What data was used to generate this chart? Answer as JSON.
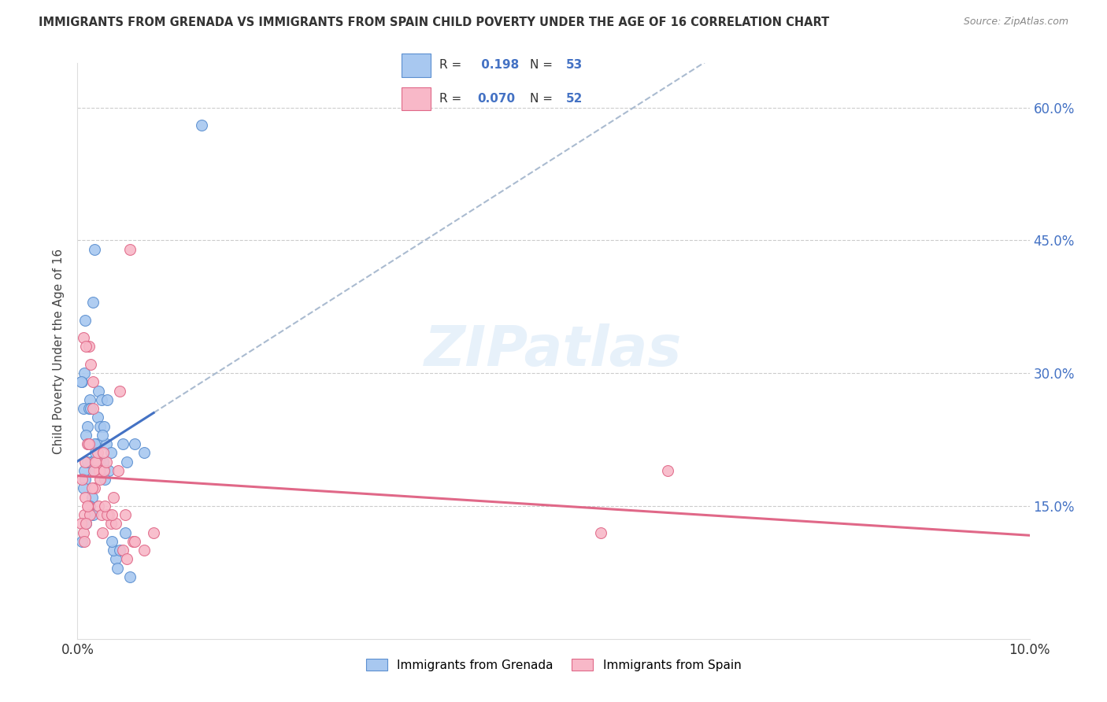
{
  "title": "IMMIGRANTS FROM GRENADA VS IMMIGRANTS FROM SPAIN CHILD POVERTY UNDER THE AGE OF 16 CORRELATION CHART",
  "source": "Source: ZipAtlas.com",
  "ylabel": "Child Poverty Under the Age of 16",
  "legend_labels": [
    "Immigrants from Grenada",
    "Immigrants from Spain"
  ],
  "R_grenada": 0.198,
  "N_grenada": 53,
  "R_spain": 0.07,
  "N_spain": 52,
  "color_grenada_fill": "#A8C8F0",
  "color_grenada_edge": "#5B8FD0",
  "color_spain_fill": "#F8B8C8",
  "color_spain_edge": "#E06888",
  "color_grenada_line": "#4472C4",
  "color_spain_line": "#E06888",
  "color_dashed": "#AABBD0",
  "xmin": 0.0,
  "xmax": 0.1,
  "ymin": 0.0,
  "ymax": 0.65,
  "yticks": [
    0.15,
    0.3,
    0.45,
    0.6
  ],
  "ytick_labels": [
    "15.0%",
    "30.0%",
    "45.0%",
    "60.0%"
  ],
  "xticks": [
    0.0,
    0.1
  ],
  "xtick_labels": [
    "0.0%",
    "10.0%"
  ],
  "grenada_x": [
    0.0013,
    0.0008,
    0.0016,
    0.0005,
    0.0018,
    0.0007,
    0.0022,
    0.001,
    0.0006,
    0.0014,
    0.002,
    0.0009,
    0.0025,
    0.0012,
    0.0004,
    0.0017,
    0.0011,
    0.0023,
    0.0008,
    0.0015,
    0.0019,
    0.0006,
    0.0021,
    0.0013,
    0.0007,
    0.0016,
    0.001,
    0.0024,
    0.0005,
    0.0018,
    0.0028,
    0.0014,
    0.0031,
    0.0009,
    0.0022,
    0.003,
    0.0026,
    0.0035,
    0.0027,
    0.0033,
    0.004,
    0.0038,
    0.0029,
    0.0036,
    0.0042,
    0.005,
    0.0055,
    0.0048,
    0.0052,
    0.0044,
    0.006,
    0.007,
    0.013
  ],
  "grenada_y": [
    0.27,
    0.36,
    0.38,
    0.29,
    0.44,
    0.3,
    0.28,
    0.24,
    0.26,
    0.2,
    0.22,
    0.23,
    0.27,
    0.26,
    0.29,
    0.19,
    0.22,
    0.2,
    0.18,
    0.16,
    0.21,
    0.17,
    0.25,
    0.15,
    0.19,
    0.14,
    0.2,
    0.24,
    0.11,
    0.22,
    0.24,
    0.26,
    0.27,
    0.13,
    0.2,
    0.22,
    0.23,
    0.21,
    0.2,
    0.19,
    0.09,
    0.1,
    0.18,
    0.11,
    0.08,
    0.12,
    0.07,
    0.22,
    0.2,
    0.1,
    0.22,
    0.21,
    0.58
  ],
  "spain_x": [
    0.0008,
    0.0012,
    0.0006,
    0.0016,
    0.001,
    0.0005,
    0.0014,
    0.0009,
    0.0018,
    0.0007,
    0.002,
    0.0011,
    0.0023,
    0.0013,
    0.0004,
    0.0017,
    0.0008,
    0.0022,
    0.0015,
    0.0019,
    0.0006,
    0.0024,
    0.001,
    0.0021,
    0.0016,
    0.0007,
    0.0025,
    0.0012,
    0.0028,
    0.0009,
    0.003,
    0.0027,
    0.0033,
    0.0035,
    0.0026,
    0.0031,
    0.004,
    0.0038,
    0.0029,
    0.0036,
    0.0043,
    0.005,
    0.0055,
    0.0058,
    0.0048,
    0.0052,
    0.0044,
    0.007,
    0.006,
    0.008,
    0.055,
    0.062
  ],
  "spain_y": [
    0.2,
    0.33,
    0.34,
    0.29,
    0.22,
    0.18,
    0.31,
    0.33,
    0.17,
    0.14,
    0.2,
    0.15,
    0.19,
    0.14,
    0.13,
    0.19,
    0.16,
    0.15,
    0.17,
    0.2,
    0.12,
    0.18,
    0.15,
    0.21,
    0.26,
    0.11,
    0.14,
    0.22,
    0.19,
    0.13,
    0.2,
    0.21,
    0.14,
    0.13,
    0.12,
    0.14,
    0.13,
    0.16,
    0.15,
    0.14,
    0.19,
    0.14,
    0.44,
    0.11,
    0.1,
    0.09,
    0.28,
    0.1,
    0.11,
    0.12,
    0.12,
    0.19
  ]
}
